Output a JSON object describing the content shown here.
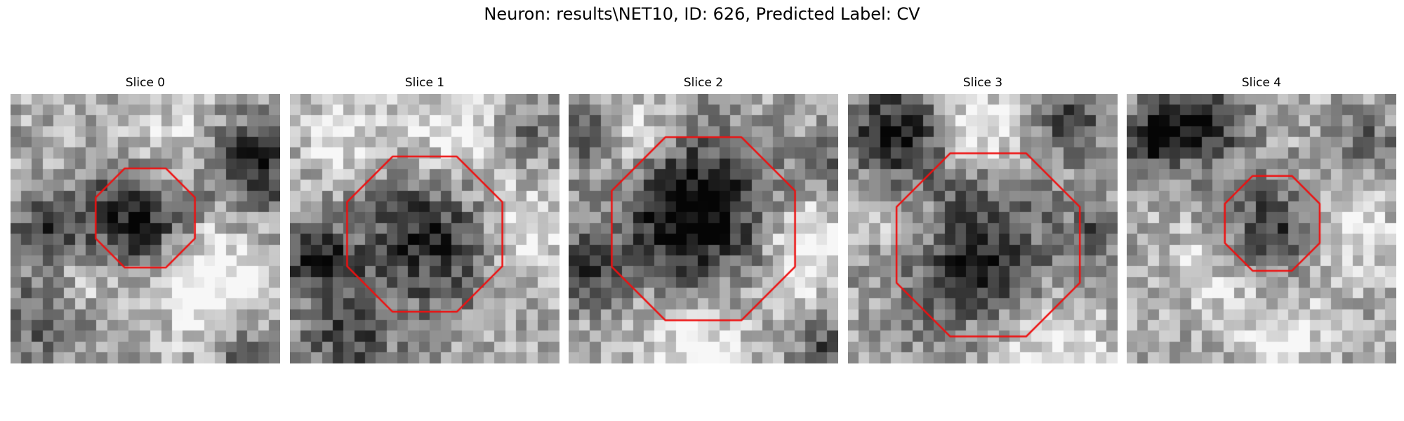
{
  "title": "Neuron: results\\NET10, ID: 626, Predicted Label: CV",
  "outline_color": "#ee1111",
  "panels": [
    {
      "title": "Slice 0",
      "center": [
        12.5,
        11.5
      ],
      "radius": 4.6,
      "dark_blobs": [
        [
          11.5,
          10.5,
          5.0,
          0.7
        ],
        [
          22,
          6,
          4.5,
          0.55
        ],
        [
          3,
          12,
          3.5,
          0.4
        ],
        [
          3,
          20,
          4,
          0.35
        ],
        [
          21,
          23,
          3,
          0.3
        ]
      ],
      "light_blobs": [
        [
          18,
          17,
          5,
          0.45
        ],
        [
          14,
          6,
          6,
          0.3
        ],
        [
          6,
          17,
          3,
          0.25
        ]
      ]
    },
    {
      "title": "Slice 1",
      "center": [
        12.5,
        13
      ],
      "radius": 7.2,
      "dark_blobs": [
        [
          12.5,
          13,
          6.5,
          0.5
        ],
        [
          2,
          15,
          3.5,
          0.5
        ],
        [
          5,
          22,
          4,
          0.4
        ],
        [
          22,
          3,
          3,
          0.25
        ]
      ],
      "light_blobs": [
        [
          21,
          12,
          4,
          0.35
        ],
        [
          15,
          4,
          5,
          0.3
        ],
        [
          5,
          4,
          4,
          0.25
        ]
      ]
    },
    {
      "title": "Slice 2",
      "center": [
        12.5,
        12.5
      ],
      "radius": 8.5,
      "dark_blobs": [
        [
          11,
          10.5,
          6.5,
          0.75
        ],
        [
          1,
          16,
          3,
          0.5
        ],
        [
          1,
          3,
          3.5,
          0.45
        ],
        [
          23,
          23,
          2.5,
          0.35
        ],
        [
          24,
          6,
          2.5,
          0.3
        ]
      ],
      "light_blobs": [
        [
          5,
          4,
          4,
          0.35
        ],
        [
          22,
          14,
          4,
          0.4
        ],
        [
          12,
          23,
          5,
          0.3
        ]
      ]
    },
    {
      "title": "Slice 3",
      "center": [
        13,
        14
      ],
      "radius": 8.5,
      "dark_blobs": [
        [
          11,
          14,
          7,
          0.55
        ],
        [
          4,
          3,
          4,
          0.6
        ],
        [
          20,
          2,
          3,
          0.4
        ],
        [
          23,
          12,
          3,
          0.3
        ]
      ],
      "light_blobs": [
        [
          12,
          3,
          4,
          0.35
        ],
        [
          5,
          12,
          3.5,
          0.3
        ],
        [
          18,
          23,
          5,
          0.3
        ]
      ]
    },
    {
      "title": "Slice 4",
      "center": [
        13.5,
        12
      ],
      "radius": 4.4,
      "dark_blobs": [
        [
          13,
          12,
          4.5,
          0.45
        ],
        [
          6,
          2,
          4,
          0.6
        ],
        [
          1,
          4,
          3,
          0.4
        ],
        [
          22,
          4,
          3,
          0.25
        ]
      ],
      "light_blobs": [
        [
          20,
          12,
          4,
          0.3
        ],
        [
          7,
          15,
          4,
          0.2
        ],
        [
          14,
          22,
          5,
          0.25
        ]
      ]
    }
  ]
}
